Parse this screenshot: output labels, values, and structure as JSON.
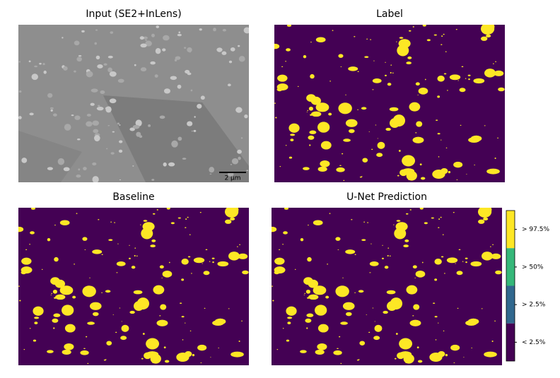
{
  "panels": [
    {
      "title": "Input (SE2+InLens)",
      "kind": "sem",
      "scale_bar": "2 µm"
    },
    {
      "title": "Label",
      "kind": "mask"
    },
    {
      "title": "Baseline",
      "kind": "mask"
    },
    {
      "title": "U-Net Prediction",
      "kind": "mask"
    }
  ],
  "colorbar": [
    {
      "label": "> 97.5%",
      "color": "#fde725"
    },
    {
      "label": "> 50%",
      "color": "#35b779"
    },
    {
      "label": "> 2.5%",
      "color": "#31688e"
    },
    {
      "label": "< 2.5%",
      "color": "#440154"
    }
  ]
}
